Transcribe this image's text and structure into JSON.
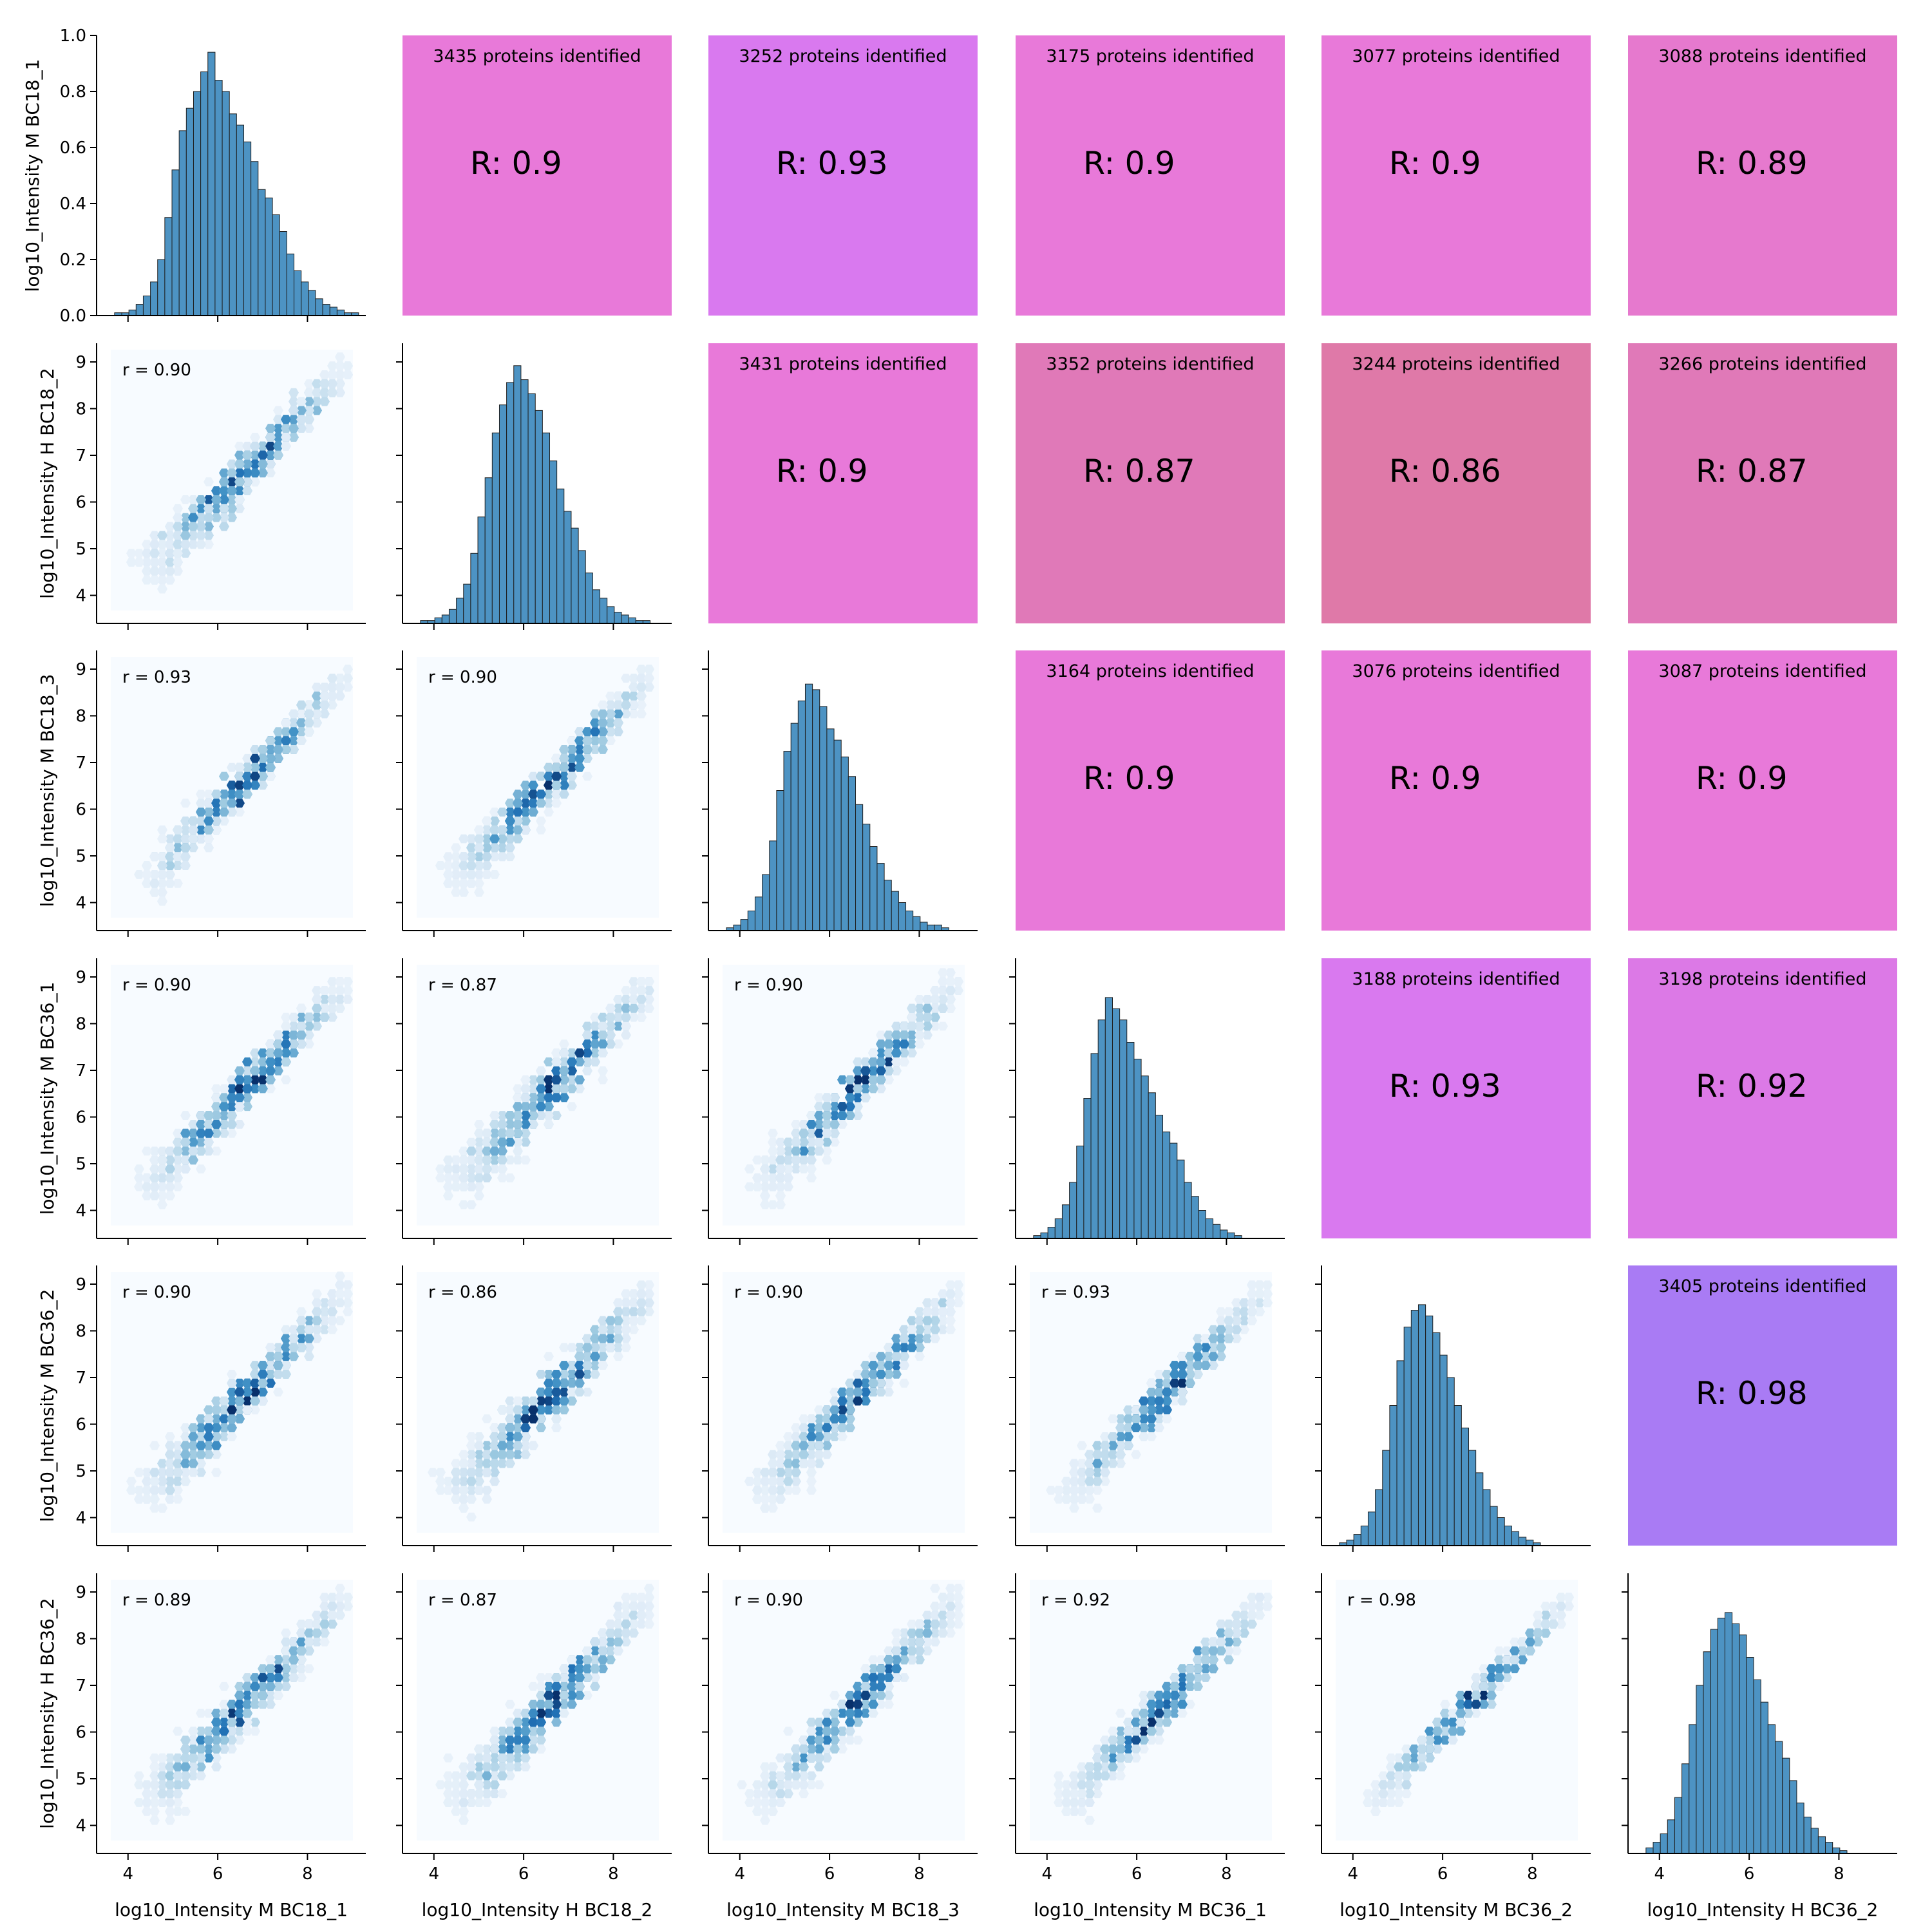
{
  "chart_data": {
    "type": "pairplot",
    "title": "",
    "variables": [
      "log10_Intensity M BC18_1",
      "log10_Intensity H BC18_2",
      "log10_Intensity M BC18_3",
      "log10_Intensity M BC36_1",
      "log10_Intensity M BC36_2",
      "log10_Intensity H BC36_2"
    ],
    "xlim": [
      3.3,
      9.3
    ],
    "ylim": [
      3.4,
      9.4
    ],
    "x_ticks": [
      4,
      6,
      8
    ],
    "x_tick_labels": [
      "4",
      "6",
      "8"
    ],
    "y_ticks": [
      4,
      5,
      6,
      7,
      8,
      9
    ],
    "y_tick_labels": [
      "4",
      "5",
      "6",
      "7",
      "8",
      "9"
    ],
    "density_ylim": [
      0,
      1.0
    ],
    "density_ticks": [
      0.0,
      0.2,
      0.4,
      0.6,
      0.8,
      1.0
    ],
    "density_tick_labels": [
      "0.0",
      "0.2",
      "0.4",
      "0.6",
      "0.8",
      "1.0"
    ],
    "diagonal": {
      "type": "histogram",
      "bin_width": 0.16,
      "first_bin": 3.7,
      "counts": [
        [
          0.01,
          0.01,
          0.02,
          0.04,
          0.07,
          0.12,
          0.2,
          0.35,
          0.52,
          0.66,
          0.74,
          0.8,
          0.87,
          0.94,
          0.84,
          0.8,
          0.72,
          0.68,
          0.62,
          0.55,
          0.45,
          0.42,
          0.36,
          0.3,
          0.22,
          0.16,
          0.12,
          0.09,
          0.06,
          0.04,
          0.03,
          0.02,
          0.01,
          0.01
        ],
        [
          0.01,
          0.01,
          0.02,
          0.03,
          0.05,
          0.09,
          0.14,
          0.25,
          0.38,
          0.52,
          0.68,
          0.78,
          0.86,
          0.92,
          0.87,
          0.82,
          0.76,
          0.68,
          0.58,
          0.48,
          0.4,
          0.34,
          0.26,
          0.18,
          0.12,
          0.09,
          0.06,
          0.04,
          0.03,
          0.02,
          0.01,
          0.01
        ],
        [
          0.01,
          0.02,
          0.04,
          0.07,
          0.12,
          0.2,
          0.32,
          0.5,
          0.64,
          0.74,
          0.82,
          0.88,
          0.86,
          0.8,
          0.72,
          0.68,
          0.62,
          0.55,
          0.45,
          0.38,
          0.3,
          0.24,
          0.18,
          0.14,
          0.1,
          0.07,
          0.05,
          0.03,
          0.02,
          0.02,
          0.01
        ],
        [
          0.01,
          0.02,
          0.04,
          0.07,
          0.12,
          0.2,
          0.33,
          0.5,
          0.66,
          0.78,
          0.86,
          0.82,
          0.78,
          0.7,
          0.64,
          0.58,
          0.52,
          0.44,
          0.38,
          0.34,
          0.28,
          0.2,
          0.15,
          0.1,
          0.07,
          0.05,
          0.03,
          0.02,
          0.01
        ],
        [
          0.01,
          0.02,
          0.04,
          0.07,
          0.12,
          0.2,
          0.34,
          0.5,
          0.66,
          0.78,
          0.84,
          0.86,
          0.82,
          0.76,
          0.68,
          0.6,
          0.5,
          0.42,
          0.34,
          0.26,
          0.2,
          0.14,
          0.1,
          0.07,
          0.05,
          0.03,
          0.02,
          0.01
        ],
        [
          0.02,
          0.04,
          0.07,
          0.12,
          0.2,
          0.32,
          0.46,
          0.6,
          0.72,
          0.8,
          0.84,
          0.86,
          0.82,
          0.78,
          0.7,
          0.62,
          0.54,
          0.46,
          0.4,
          0.34,
          0.26,
          0.18,
          0.13,
          0.09,
          0.06,
          0.04,
          0.02,
          0.01
        ]
      ]
    },
    "lower": {
      "type": "hexbin",
      "cmap": "Blues",
      "panels": [
        {
          "row": 1,
          "col": 0,
          "r_label": "r = 0.90",
          "r": 0.9
        },
        {
          "row": 2,
          "col": 0,
          "r_label": "r = 0.93",
          "r": 0.93
        },
        {
          "row": 2,
          "col": 1,
          "r_label": "r = 0.90",
          "r": 0.9
        },
        {
          "row": 3,
          "col": 0,
          "r_label": "r = 0.90",
          "r": 0.9
        },
        {
          "row": 3,
          "col": 1,
          "r_label": "r = 0.87",
          "r": 0.87
        },
        {
          "row": 3,
          "col": 2,
          "r_label": "r = 0.90",
          "r": 0.9
        },
        {
          "row": 4,
          "col": 0,
          "r_label": "r = 0.90",
          "r": 0.9
        },
        {
          "row": 4,
          "col": 1,
          "r_label": "r = 0.86",
          "r": 0.86
        },
        {
          "row": 4,
          "col": 2,
          "r_label": "r = 0.90",
          "r": 0.9
        },
        {
          "row": 4,
          "col": 3,
          "r_label": "r = 0.93",
          "r": 0.93
        },
        {
          "row": 5,
          "col": 0,
          "r_label": "r = 0.89",
          "r": 0.89
        },
        {
          "row": 5,
          "col": 1,
          "r_label": "r = 0.87",
          "r": 0.87
        },
        {
          "row": 5,
          "col": 2,
          "r_label": "r = 0.90",
          "r": 0.9
        },
        {
          "row": 5,
          "col": 3,
          "r_label": "r = 0.92",
          "r": 0.92
        },
        {
          "row": 5,
          "col": 4,
          "r_label": "r = 0.98",
          "r": 0.98
        }
      ]
    },
    "upper": {
      "type": "correlation_tiles",
      "panels": [
        {
          "row": 0,
          "col": 1,
          "proteins": "3435 proteins identified",
          "r_text": "R: 0.9",
          "color": "#e879d9"
        },
        {
          "row": 0,
          "col": 2,
          "proteins": "3252 proteins identified",
          "r_text": "R: 0.93",
          "color": "#d979ef"
        },
        {
          "row": 0,
          "col": 3,
          "proteins": "3175 proteins identified",
          "r_text": "R: 0.9",
          "color": "#e879d9"
        },
        {
          "row": 0,
          "col": 4,
          "proteins": "3077 proteins identified",
          "r_text": "R: 0.9",
          "color": "#e879d9"
        },
        {
          "row": 0,
          "col": 5,
          "proteins": "3088 proteins identified",
          "r_text": "R: 0.89",
          "color": "#e679ce"
        },
        {
          "row": 1,
          "col": 2,
          "proteins": "3431 proteins identified",
          "r_text": "R: 0.9",
          "color": "#e879d9"
        },
        {
          "row": 1,
          "col": 3,
          "proteins": "3352 proteins identified",
          "r_text": "R: 0.87",
          "color": "#e079b8"
        },
        {
          "row": 1,
          "col": 4,
          "proteins": "3244 proteins identified",
          "r_text": "R: 0.86",
          "color": "#df79a8"
        },
        {
          "row": 1,
          "col": 5,
          "proteins": "3266 proteins identified",
          "r_text": "R: 0.87",
          "color": "#e079b8"
        },
        {
          "row": 2,
          "col": 3,
          "proteins": "3164 proteins identified",
          "r_text": "R: 0.9",
          "color": "#e879d9"
        },
        {
          "row": 2,
          "col": 4,
          "proteins": "3076 proteins identified",
          "r_text": "R: 0.9",
          "color": "#e879d9"
        },
        {
          "row": 2,
          "col": 5,
          "proteins": "3087 proteins identified",
          "r_text": "R: 0.9",
          "color": "#e879d9"
        },
        {
          "row": 3,
          "col": 4,
          "proteins": "3188 proteins identified",
          "r_text": "R: 0.93",
          "color": "#d979ef"
        },
        {
          "row": 3,
          "col": 5,
          "proteins": "3198 proteins identified",
          "r_text": "R: 0.92",
          "color": "#dc79e6"
        },
        {
          "row": 4,
          "col": 5,
          "proteins": "3405 proteins identified",
          "r_text": "R: 0.98",
          "color": "#a97bf4"
        }
      ]
    }
  }
}
